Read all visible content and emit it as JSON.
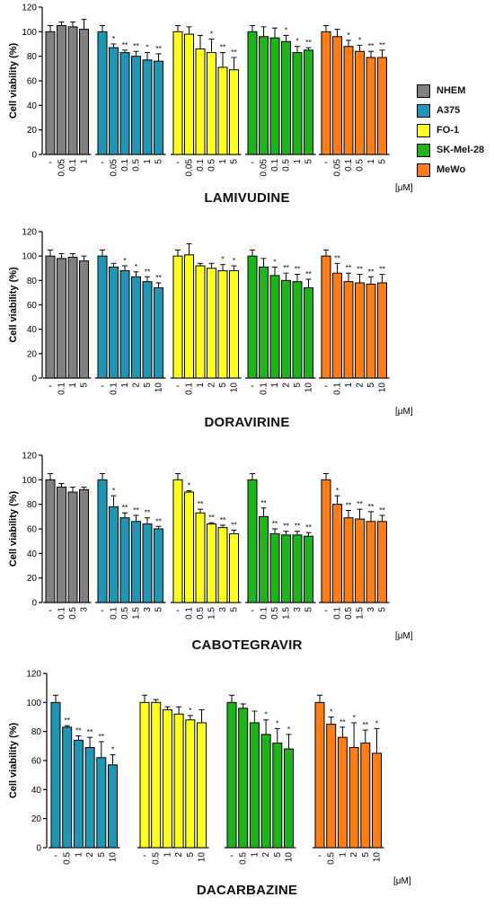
{
  "legend": [
    {
      "name": "NHEM",
      "color": "#808080"
    },
    {
      "name": "A375",
      "color": "#2196B4"
    },
    {
      "name": "FO-1",
      "color": "#FFFF1E"
    },
    {
      "name": "SK-Mel-28",
      "color": "#20B41C"
    },
    {
      "name": "MeWo",
      "color": "#FF7D16"
    }
  ],
  "chart_data": [
    {
      "type": "bar",
      "title": "LAMIVUDINE",
      "ylabel": "Cell viability (%)",
      "unit": "[μM]",
      "ylim": [
        0,
        120
      ],
      "yticks": [
        0,
        20,
        40,
        60,
        80,
        100,
        120
      ],
      "series": [
        {
          "name": "NHEM",
          "categories": [
            "-",
            "0.05",
            "0.1",
            "1"
          ],
          "values": [
            100,
            105,
            104,
            102
          ],
          "errors": [
            5,
            3,
            4,
            8
          ],
          "sig": [
            "",
            "",
            "",
            ""
          ]
        },
        {
          "name": "A375",
          "categories": [
            "-",
            "0.05",
            "0.1",
            "0.5",
            "1",
            "5"
          ],
          "values": [
            100,
            87,
            83,
            80,
            77,
            76
          ],
          "errors": [
            5,
            3,
            2,
            4,
            6,
            6
          ],
          "sig": [
            "",
            "*",
            "**",
            "**",
            "*",
            "**"
          ]
        },
        {
          "name": "FO-1",
          "categories": [
            "-",
            "0.05",
            "0.1",
            "0.5",
            "1",
            "5"
          ],
          "values": [
            100,
            98,
            86,
            83,
            71,
            69
          ],
          "errors": [
            5,
            6,
            11,
            11,
            12,
            10
          ],
          "sig": [
            "",
            "",
            "",
            "*",
            "**",
            "**"
          ]
        },
        {
          "name": "SK-Mel-28",
          "categories": [
            "-",
            "0.05",
            "0.1",
            "0.5",
            "1",
            "5"
          ],
          "values": [
            100,
            96,
            95,
            92,
            83,
            85
          ],
          "errors": [
            5,
            8,
            8,
            5,
            5,
            2
          ],
          "sig": [
            "",
            "",
            "",
            "*",
            "*",
            "**"
          ]
        },
        {
          "name": "MeWo",
          "categories": [
            "-",
            "0.05",
            "0.1",
            "0.5",
            "1",
            "5"
          ],
          "values": [
            100,
            96,
            88,
            84,
            79,
            79
          ],
          "errors": [
            5,
            6,
            5,
            5,
            5,
            6
          ],
          "sig": [
            "",
            "",
            "*",
            "*",
            "**",
            "**"
          ]
        }
      ]
    },
    {
      "type": "bar",
      "title": "DORAVIRINE",
      "ylabel": "Cell viability (%)",
      "unit": "[μM]",
      "ylim": [
        0,
        120
      ],
      "yticks": [
        0,
        20,
        40,
        60,
        80,
        100,
        120
      ],
      "series": [
        {
          "name": "NHEM",
          "categories": [
            "-",
            "0.1",
            "1",
            "5"
          ],
          "values": [
            100,
            98,
            99,
            96
          ],
          "errors": [
            5,
            4,
            3,
            4
          ],
          "sig": [
            "",
            "",
            "",
            ""
          ]
        },
        {
          "name": "A375",
          "categories": [
            "-",
            "0.1",
            "1",
            "2",
            "5",
            "10"
          ],
          "values": [
            100,
            91,
            88,
            83,
            79,
            74
          ],
          "errors": [
            5,
            3,
            4,
            4,
            4,
            4
          ],
          "sig": [
            "",
            "",
            "*",
            "*",
            "**",
            "**"
          ]
        },
        {
          "name": "FO-1",
          "categories": [
            "-",
            "0.1",
            "1",
            "2",
            "5",
            "10"
          ],
          "values": [
            100,
            101,
            92,
            90,
            88,
            88
          ],
          "errors": [
            5,
            9,
            2,
            4,
            5,
            4
          ],
          "sig": [
            "",
            "",
            "",
            "",
            "*",
            "*"
          ]
        },
        {
          "name": "SK-Mel-28",
          "categories": [
            "-",
            "0.1",
            "1",
            "2",
            "5",
            "10"
          ],
          "values": [
            100,
            91,
            84,
            80,
            79,
            74
          ],
          "errors": [
            5,
            7,
            7,
            6,
            6,
            7
          ],
          "sig": [
            "",
            "",
            "*",
            "**",
            "**",
            "**"
          ]
        },
        {
          "name": "MeWo",
          "categories": [
            "-",
            "0.1",
            "1",
            "2",
            "5",
            "10"
          ],
          "values": [
            100,
            86,
            79,
            78,
            77,
            78
          ],
          "errors": [
            5,
            8,
            7,
            7,
            6,
            7
          ],
          "sig": [
            "",
            "**",
            "**",
            "**",
            "**",
            "**"
          ]
        }
      ]
    },
    {
      "type": "bar",
      "title": "CABOTEGRAVIR",
      "ylabel": "Cell viability (%)",
      "unit": "[μM]",
      "ylim": [
        0,
        120
      ],
      "yticks": [
        0,
        20,
        40,
        60,
        80,
        100,
        120
      ],
      "series": [
        {
          "name": "NHEM",
          "categories": [
            "-",
            "0.1",
            "0.5",
            "3"
          ],
          "values": [
            100,
            94,
            90,
            92
          ],
          "errors": [
            5,
            3,
            4,
            2
          ],
          "sig": [
            "",
            "",
            "",
            ""
          ]
        },
        {
          "name": "A375",
          "categories": [
            "-",
            "0.1",
            "0.5",
            "1.5",
            "3",
            "5"
          ],
          "values": [
            100,
            78,
            69,
            66,
            64,
            60
          ],
          "errors": [
            5,
            9,
            4,
            5,
            5,
            2
          ],
          "sig": [
            "",
            "*",
            "**",
            "**",
            "**",
            "**"
          ]
        },
        {
          "name": "FO-1",
          "categories": [
            "-",
            "0.1",
            "0.5",
            "1.5",
            "3",
            "5"
          ],
          "values": [
            100,
            90,
            73,
            64,
            61,
            56
          ],
          "errors": [
            5,
            1,
            3,
            1,
            2,
            3
          ],
          "sig": [
            "",
            "*",
            "**",
            "**",
            "**",
            "**"
          ]
        },
        {
          "name": "SK-Mel-28",
          "categories": [
            "-",
            "0.1",
            "0.5",
            "1.5",
            "3",
            "5"
          ],
          "values": [
            100,
            70,
            56,
            55,
            55,
            54
          ],
          "errors": [
            5,
            7,
            4,
            3,
            3,
            3
          ],
          "sig": [
            "",
            "**",
            "**",
            "**",
            "**",
            "**"
          ]
        },
        {
          "name": "MeWo",
          "categories": [
            "-",
            "0.1",
            "0.5",
            "1.5",
            "3",
            "5"
          ],
          "values": [
            100,
            80,
            69,
            68,
            66,
            66
          ],
          "errors": [
            5,
            7,
            6,
            8,
            8,
            5
          ],
          "sig": [
            "",
            "*",
            "**",
            "**",
            "**",
            "**"
          ]
        }
      ]
    },
    {
      "type": "bar",
      "title": "DACARBAZINE",
      "ylabel": "Cell viability (%)",
      "unit": "[μM]",
      "ylim": [
        0,
        120
      ],
      "yticks": [
        0,
        20,
        40,
        60,
        80,
        100,
        120
      ],
      "series": [
        {
          "name": "A375",
          "categories": [
            "-",
            "0.5",
            "1",
            "2",
            "5",
            "10"
          ],
          "values": [
            100,
            83,
            74,
            69,
            62,
            57
          ],
          "errors": [
            5,
            1,
            3,
            7,
            11,
            7
          ],
          "sig": [
            "",
            "**",
            "**",
            "**",
            "**",
            "*"
          ]
        },
        {
          "name": "FO-1",
          "categories": [
            "-",
            "0.5",
            "1",
            "2",
            "5",
            "10"
          ],
          "values": [
            100,
            100,
            95,
            92,
            88,
            86
          ],
          "errors": [
            5,
            2,
            2,
            5,
            3,
            9
          ],
          "sig": [
            "",
            "",
            "",
            "",
            "*",
            ""
          ]
        },
        {
          "name": "SK-Mel-28",
          "categories": [
            "-",
            "0.5",
            "1",
            "2",
            "5",
            "10"
          ],
          "values": [
            100,
            96,
            86,
            78,
            72,
            68
          ],
          "errors": [
            5,
            3,
            8,
            10,
            10,
            10
          ],
          "sig": [
            "",
            "",
            "",
            "*",
            "*",
            "*"
          ]
        },
        {
          "name": "MeWo",
          "categories": [
            "-",
            "0.5",
            "1",
            "2",
            "5",
            "10"
          ],
          "values": [
            100,
            85,
            76,
            69,
            72,
            65
          ],
          "errors": [
            5,
            5,
            7,
            17,
            9,
            17
          ],
          "sig": [
            "",
            "*",
            "**",
            "*",
            "**",
            "*"
          ]
        }
      ]
    }
  ]
}
